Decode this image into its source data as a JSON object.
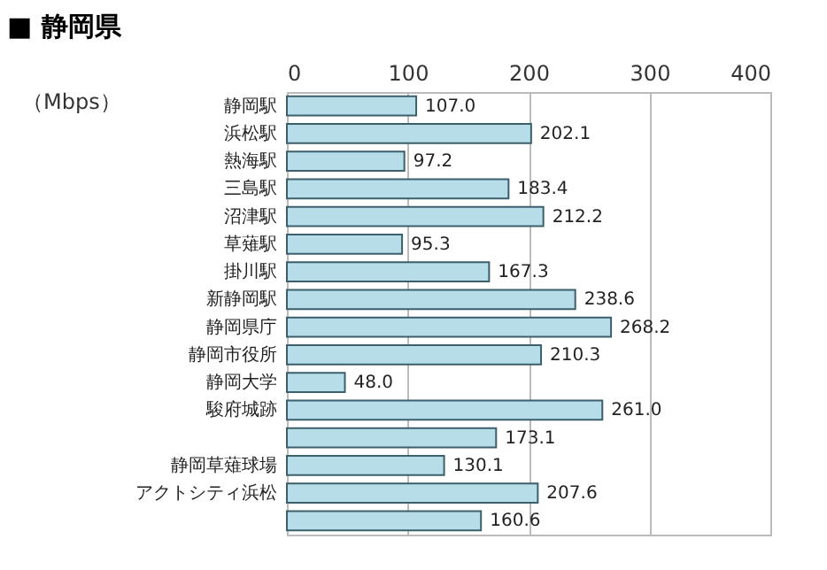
{
  "chart_data": {
    "type": "bar",
    "orientation": "horizontal",
    "title": "■ 静岡県",
    "xlabel": "（Mbps）",
    "categories": [
      "静岡駅",
      "浜松駅",
      "熱海駅",
      "三島駅",
      "沼津駅",
      "草薙駅",
      "掛川駅",
      "新静岡駅",
      "静岡県庁",
      "静岡市役所",
      "静岡大学",
      "駿府城跡",
      null,
      "静岡草薙球場",
      "アクトシティ浜松",
      null
    ],
    "values": [
      107.0,
      202.1,
      97.2,
      183.4,
      212.2,
      95.3,
      167.3,
      238.6,
      268.2,
      210.3,
      48.0,
      261.0,
      173.1,
      130.1,
      207.6,
      160.6
    ],
    "value_labels": [
      "107.0",
      "202.1",
      "97.2",
      "183.4",
      "212.2",
      "95.3",
      "167.3",
      "238.6",
      "268.2",
      "210.3",
      "48.0",
      "261.0",
      "173.1",
      "130.1",
      "207.6",
      "160.6"
    ],
    "color": "#b7dde8",
    "xlim": [
      0,
      400
    ],
    "xticks": [
      0,
      100,
      200,
      300,
      400
    ],
    "grid": "x"
  }
}
